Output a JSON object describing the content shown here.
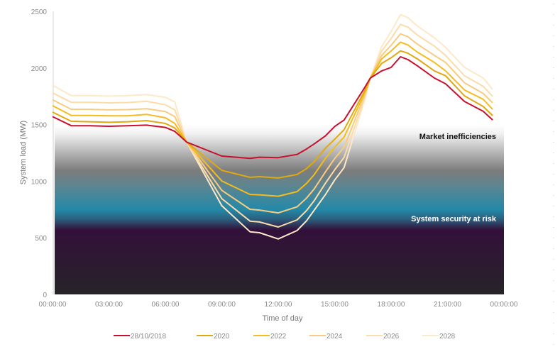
{
  "chart_data": {
    "type": "line",
    "title": "",
    "xlabel": "Time of day",
    "ylabel": "System load (MW)",
    "ylim": [
      0,
      2500
    ],
    "yticks": [
      0,
      500,
      1000,
      1500,
      2000,
      2500
    ],
    "xticks": [
      "00:00:00",
      "03:00:00",
      "06:00:00",
      "09:00:00",
      "12:00:00",
      "15:00:00",
      "18:00:00",
      "21:00:00",
      "00:00:00"
    ],
    "grid": false,
    "legend": "bottom",
    "x": [
      "00:00",
      "01:00",
      "02:00",
      "03:00",
      "04:00",
      "05:00",
      "06:00",
      "06:30",
      "07:08",
      "09:00",
      "10:30",
      "11:00",
      "12:00",
      "13:00",
      "13:30",
      "13:54",
      "14:30",
      "15:00",
      "15:30",
      "16:36",
      "16:54",
      "17:30",
      "18:00",
      "18:30",
      "18:54",
      "19:24",
      "20:18",
      "20:54",
      "21:54",
      "22:54",
      "23:24"
    ],
    "series": [
      {
        "name": "28/10/2018",
        "color": "#c8102e",
        "values": [
          1570,
          1490,
          1490,
          1485,
          1490,
          1495,
          1475,
          1440,
          1345,
          1222,
          1201,
          1212,
          1208,
          1236,
          1284,
          1328,
          1399,
          1483,
          1540,
          1828,
          1911,
          1974,
          2005,
          2099,
          2074,
          2019,
          1911,
          1860,
          1704,
          1617,
          1541
        ]
      },
      {
        "name": "2020",
        "color": "#e0a812",
        "values": [
          1610,
          1529,
          1525,
          1520,
          1525,
          1535,
          1510,
          1470,
          1345,
          1096,
          1034,
          1040,
          1028,
          1059,
          1110,
          1171,
          1290,
          1370,
          1455,
          1800,
          1911,
          2040,
          2090,
          2151,
          2130,
          2080,
          1974,
          1931,
          1754,
          1660,
          1579
        ]
      },
      {
        "name": "2022",
        "color": "#f5bc1c",
        "values": [
          1667,
          1581,
          1581,
          1578,
          1578,
          1590,
          1560,
          1510,
          1345,
          1002,
          883,
          880,
          867,
          908,
          980,
          1055,
          1200,
          1300,
          1390,
          1780,
          1911,
          2080,
          2150,
          2228,
          2203,
          2140,
          2049,
          1974,
          1806,
          1723,
          1635
        ]
      },
      {
        "name": "2024",
        "color": "#f8cc80",
        "values": [
          1719,
          1635,
          1635,
          1630,
          1632,
          1640,
          1615,
          1570,
          1345,
          919,
          752,
          745,
          720,
          773,
          850,
          929,
          1080,
          1200,
          1300,
          1760,
          1911,
          2110,
          2200,
          2301,
          2276,
          2210,
          2111,
          2049,
          1869,
          1775,
          1692
        ]
      },
      {
        "name": "2026",
        "color": "#fbdcaa",
        "values": [
          1781,
          1696,
          1696,
          1692,
          1695,
          1705,
          1675,
          1630,
          1345,
          846,
          647,
          640,
          595,
          658,
          740,
          825,
          980,
          1100,
          1210,
          1740,
          1911,
          2150,
          2260,
          2385,
          2360,
          2290,
          2193,
          2110,
          1931,
          1838,
          1748
        ]
      },
      {
        "name": "2028",
        "color": "#fde8c8",
        "values": [
          1848,
          1756,
          1756,
          1752,
          1755,
          1765,
          1740,
          1700,
          1345,
          783,
          553,
          545,
          490,
          564,
          650,
          741,
          880,
          1010,
          1120,
          1720,
          1911,
          2190,
          2320,
          2471,
          2444,
          2370,
          2266,
          2182,
          2005,
          1911,
          1811
        ]
      }
    ],
    "annotations": [
      "Market inefficiencies",
      "System security at risk"
    ]
  }
}
